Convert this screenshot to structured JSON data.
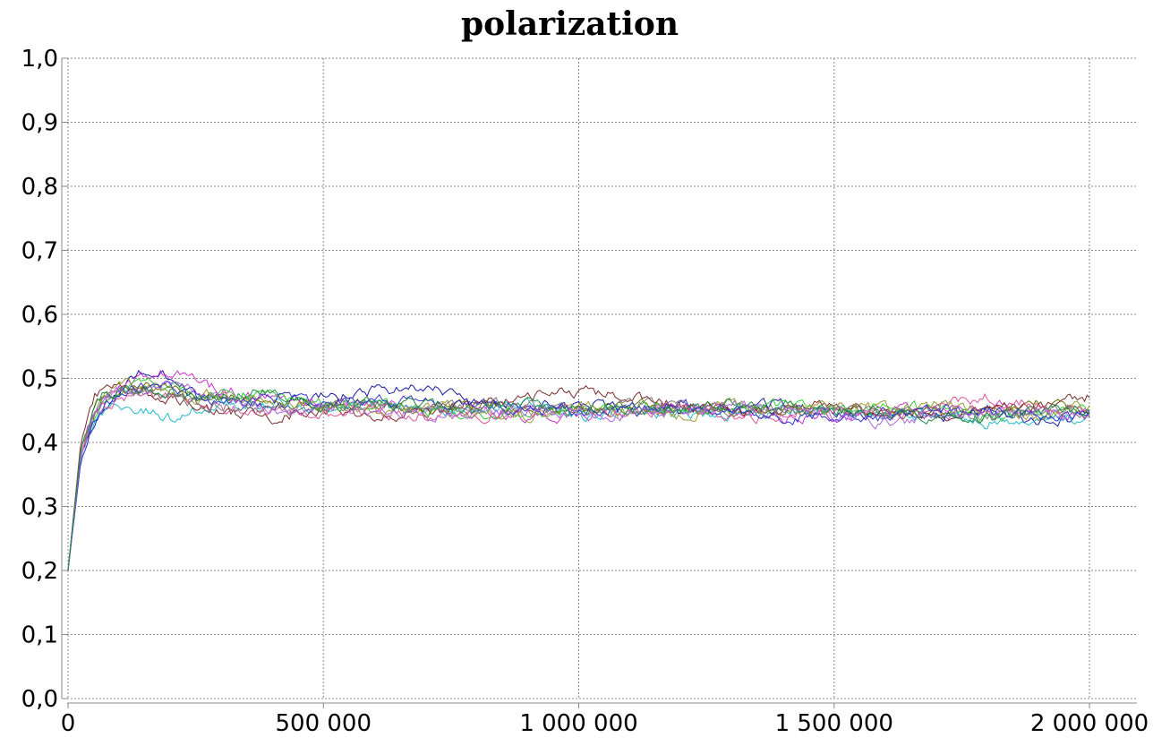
{
  "chart_data": {
    "type": "line",
    "title": "polarization",
    "xlabel": "",
    "ylabel": "",
    "xlim": [
      0,
      2000000
    ],
    "ylim": [
      0.0,
      1.0
    ],
    "x_ticks": [
      {
        "value": 0,
        "label": "0"
      },
      {
        "value": 500000,
        "label": "500 000"
      },
      {
        "value": 1000000,
        "label": "1 000 000"
      },
      {
        "value": 1500000,
        "label": "1 500 000"
      },
      {
        "value": 2000000,
        "label": "2 000 000"
      }
    ],
    "y_ticks": [
      {
        "value": 0.0,
        "label": "0,0"
      },
      {
        "value": 0.1,
        "label": "0,1"
      },
      {
        "value": 0.2,
        "label": "0,2"
      },
      {
        "value": 0.3,
        "label": "0,3"
      },
      {
        "value": 0.4,
        "label": "0,4"
      },
      {
        "value": 0.5,
        "label": "0,5"
      },
      {
        "value": 0.6,
        "label": "0,6"
      },
      {
        "value": 0.7,
        "label": "0,7"
      },
      {
        "value": 0.8,
        "label": "0,8"
      },
      {
        "value": 0.9,
        "label": "0,9"
      },
      {
        "value": 1.0,
        "label": "1,0"
      }
    ],
    "grid": true,
    "legend": "none",
    "x": [
      0,
      25000,
      50000,
      75000,
      100000,
      150000,
      200000,
      250000,
      300000,
      400000,
      500000,
      600000,
      700000,
      800000,
      900000,
      1000000,
      1100000,
      1200000,
      1300000,
      1400000,
      1500000,
      1600000,
      1700000,
      1800000,
      1900000,
      2000000
    ],
    "series": [
      {
        "color": "#6b6b00",
        "values": [
          0.2,
          0.38,
          0.44,
          0.47,
          0.48,
          0.49,
          0.48,
          0.47,
          0.47,
          0.46,
          0.46,
          0.46,
          0.45,
          0.46,
          0.45,
          0.45,
          0.46,
          0.45,
          0.45,
          0.45,
          0.45,
          0.44,
          0.45,
          0.45,
          0.46,
          0.45
        ]
      },
      {
        "color": "#1a1aa6",
        "values": [
          0.2,
          0.38,
          0.43,
          0.46,
          0.48,
          0.51,
          0.5,
          0.48,
          0.47,
          0.46,
          0.47,
          0.48,
          0.49,
          0.46,
          0.46,
          0.46,
          0.45,
          0.45,
          0.45,
          0.46,
          0.44,
          0.45,
          0.44,
          0.45,
          0.43,
          0.44
        ]
      },
      {
        "color": "#cc33cc",
        "values": [
          0.2,
          0.39,
          0.45,
          0.47,
          0.49,
          0.5,
          0.51,
          0.5,
          0.48,
          0.47,
          0.46,
          0.46,
          0.45,
          0.45,
          0.44,
          0.44,
          0.45,
          0.46,
          0.45,
          0.44,
          0.44,
          0.45,
          0.45,
          0.46,
          0.45,
          0.44
        ]
      },
      {
        "color": "#22bbcc",
        "values": [
          0.2,
          0.37,
          0.43,
          0.45,
          0.46,
          0.45,
          0.44,
          0.45,
          0.46,
          0.46,
          0.45,
          0.46,
          0.45,
          0.45,
          0.46,
          0.44,
          0.45,
          0.44,
          0.44,
          0.45,
          0.45,
          0.44,
          0.44,
          0.43,
          0.43,
          0.44
        ]
      },
      {
        "color": "#7a2a2a",
        "values": [
          0.2,
          0.4,
          0.47,
          0.49,
          0.49,
          0.48,
          0.47,
          0.46,
          0.45,
          0.44,
          0.45,
          0.44,
          0.45,
          0.46,
          0.47,
          0.48,
          0.47,
          0.46,
          0.45,
          0.45,
          0.46,
          0.45,
          0.44,
          0.45,
          0.46,
          0.47
        ]
      },
      {
        "color": "#33cc33",
        "values": [
          0.2,
          0.38,
          0.44,
          0.47,
          0.48,
          0.49,
          0.49,
          0.48,
          0.48,
          0.47,
          0.46,
          0.46,
          0.45,
          0.44,
          0.45,
          0.45,
          0.46,
          0.45,
          0.45,
          0.46,
          0.45,
          0.46,
          0.45,
          0.44,
          0.44,
          0.45
        ]
      },
      {
        "color": "#999933",
        "values": [
          0.2,
          0.39,
          0.45,
          0.48,
          0.49,
          0.49,
          0.48,
          0.47,
          0.48,
          0.46,
          0.46,
          0.45,
          0.46,
          0.45,
          0.44,
          0.46,
          0.45,
          0.44,
          0.46,
          0.45,
          0.46,
          0.45,
          0.46,
          0.45,
          0.44,
          0.46
        ]
      },
      {
        "color": "#dd5599",
        "values": [
          0.2,
          0.38,
          0.44,
          0.46,
          0.47,
          0.48,
          0.47,
          0.46,
          0.45,
          0.45,
          0.44,
          0.45,
          0.44,
          0.44,
          0.45,
          0.45,
          0.44,
          0.45,
          0.44,
          0.44,
          0.45,
          0.44,
          0.46,
          0.47,
          0.46,
          0.45
        ]
      },
      {
        "color": "#777777",
        "values": [
          0.2,
          0.39,
          0.45,
          0.47,
          0.48,
          0.48,
          0.47,
          0.46,
          0.46,
          0.45,
          0.45,
          0.46,
          0.45,
          0.46,
          0.46,
          0.45,
          0.46,
          0.46,
          0.45,
          0.45,
          0.45,
          0.45,
          0.45,
          0.44,
          0.45,
          0.45
        ]
      },
      {
        "color": "#3333cc",
        "values": [
          0.2,
          0.37,
          0.43,
          0.46,
          0.47,
          0.49,
          0.49,
          0.47,
          0.46,
          0.47,
          0.46,
          0.47,
          0.46,
          0.46,
          0.45,
          0.45,
          0.45,
          0.46,
          0.45,
          0.44,
          0.44,
          0.44,
          0.45,
          0.45,
          0.44,
          0.44
        ]
      },
      {
        "color": "#aa66dd",
        "values": [
          0.2,
          0.38,
          0.44,
          0.47,
          0.48,
          0.48,
          0.49,
          0.48,
          0.47,
          0.45,
          0.45,
          0.45,
          0.44,
          0.45,
          0.45,
          0.44,
          0.44,
          0.45,
          0.46,
          0.45,
          0.44,
          0.43,
          0.44,
          0.45,
          0.45,
          0.44
        ]
      },
      {
        "color": "#228844",
        "values": [
          0.2,
          0.39,
          0.45,
          0.48,
          0.48,
          0.48,
          0.48,
          0.47,
          0.47,
          0.48,
          0.46,
          0.46,
          0.46,
          0.45,
          0.46,
          0.45,
          0.45,
          0.45,
          0.46,
          0.46,
          0.45,
          0.45,
          0.44,
          0.44,
          0.45,
          0.45
        ]
      }
    ]
  }
}
